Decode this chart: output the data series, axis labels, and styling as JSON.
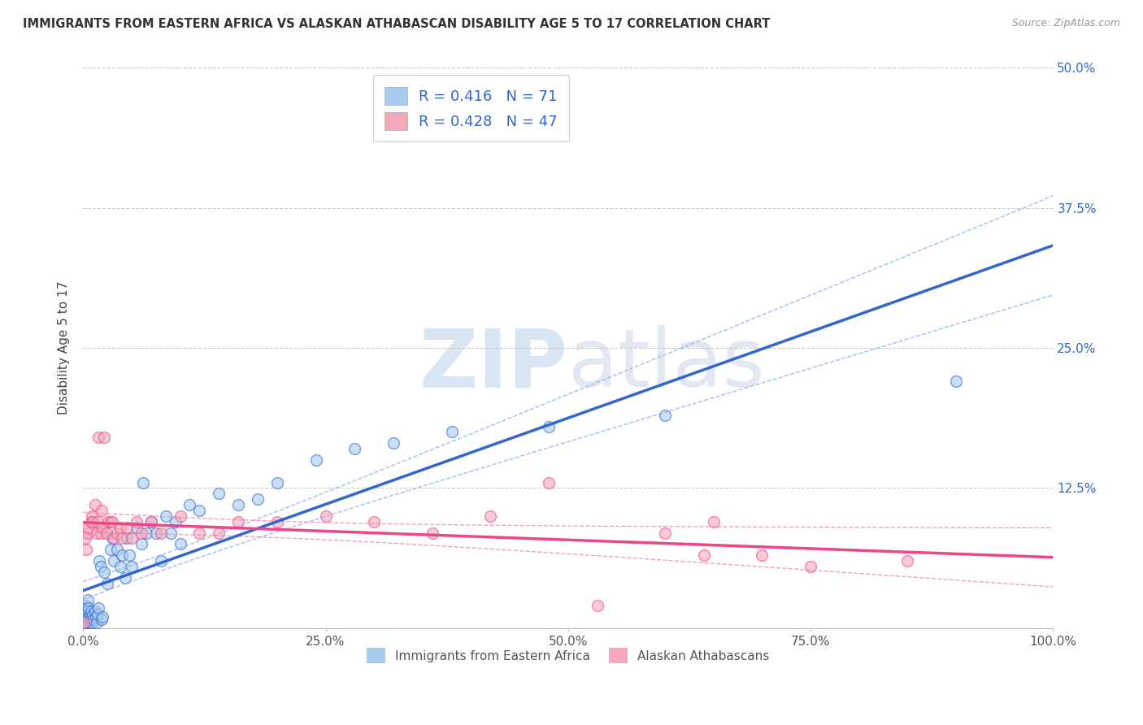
{
  "title": "IMMIGRANTS FROM EASTERN AFRICA VS ALASKAN ATHABASCAN DISABILITY AGE 5 TO 17 CORRELATION CHART",
  "source": "Source: ZipAtlas.com",
  "ylabel": "Disability Age 5 to 17",
  "legend_label1": "Immigrants from Eastern Africa",
  "legend_label2": "Alaskan Athabascans",
  "r1": 0.416,
  "n1": 71,
  "r2": 0.428,
  "n2": 47,
  "color1": "#A8CCF0",
  "color2": "#F4A8BC",
  "line_color1": "#3366CC",
  "line_color2": "#EE4488",
  "conf_color1": "#8AAEE8",
  "conf_color2": "#EE88AA",
  "xlim": [
    0,
    1.0
  ],
  "ylim": [
    0,
    0.5
  ],
  "xticks": [
    0.0,
    0.25,
    0.5,
    0.75,
    1.0
  ],
  "xticklabels": [
    "0.0%",
    "25.0%",
    "50.0%",
    "75.0%",
    "100.0%"
  ],
  "yticks": [
    0.0,
    0.125,
    0.25,
    0.375,
    0.5
  ],
  "yticklabels": [
    "",
    "12.5%",
    "25.0%",
    "37.5%",
    "50.0%"
  ],
  "blue_points": [
    [
      0.001,
      0.005
    ],
    [
      0.001,
      0.008
    ],
    [
      0.001,
      0.01
    ],
    [
      0.001,
      0.012
    ],
    [
      0.002,
      0.005
    ],
    [
      0.002,
      0.008
    ],
    [
      0.002,
      0.015
    ],
    [
      0.002,
      0.02
    ],
    [
      0.003,
      0.005
    ],
    [
      0.003,
      0.01
    ],
    [
      0.003,
      0.018
    ],
    [
      0.004,
      0.005
    ],
    [
      0.004,
      0.012
    ],
    [
      0.005,
      0.008
    ],
    [
      0.005,
      0.015
    ],
    [
      0.005,
      0.025
    ],
    [
      0.006,
      0.01
    ],
    [
      0.006,
      0.018
    ],
    [
      0.007,
      0.005
    ],
    [
      0.007,
      0.012
    ],
    [
      0.008,
      0.008
    ],
    [
      0.008,
      0.015
    ],
    [
      0.009,
      0.01
    ],
    [
      0.01,
      0.005
    ],
    [
      0.01,
      0.012
    ],
    [
      0.011,
      0.008
    ],
    [
      0.012,
      0.015
    ],
    [
      0.013,
      0.01
    ],
    [
      0.014,
      0.005
    ],
    [
      0.015,
      0.012
    ],
    [
      0.016,
      0.018
    ],
    [
      0.017,
      0.06
    ],
    [
      0.018,
      0.055
    ],
    [
      0.019,
      0.008
    ],
    [
      0.02,
      0.01
    ],
    [
      0.022,
      0.05
    ],
    [
      0.025,
      0.04
    ],
    [
      0.028,
      0.07
    ],
    [
      0.03,
      0.08
    ],
    [
      0.032,
      0.06
    ],
    [
      0.035,
      0.07
    ],
    [
      0.038,
      0.055
    ],
    [
      0.04,
      0.065
    ],
    [
      0.043,
      0.045
    ],
    [
      0.045,
      0.08
    ],
    [
      0.048,
      0.065
    ],
    [
      0.05,
      0.055
    ],
    [
      0.055,
      0.09
    ],
    [
      0.06,
      0.075
    ],
    [
      0.062,
      0.13
    ],
    [
      0.065,
      0.085
    ],
    [
      0.07,
      0.095
    ],
    [
      0.075,
      0.085
    ],
    [
      0.08,
      0.06
    ],
    [
      0.085,
      0.1
    ],
    [
      0.09,
      0.085
    ],
    [
      0.095,
      0.095
    ],
    [
      0.1,
      0.075
    ],
    [
      0.11,
      0.11
    ],
    [
      0.12,
      0.105
    ],
    [
      0.14,
      0.12
    ],
    [
      0.16,
      0.11
    ],
    [
      0.18,
      0.115
    ],
    [
      0.2,
      0.13
    ],
    [
      0.24,
      0.15
    ],
    [
      0.28,
      0.16
    ],
    [
      0.32,
      0.165
    ],
    [
      0.38,
      0.175
    ],
    [
      0.48,
      0.18
    ],
    [
      0.6,
      0.19
    ],
    [
      0.9,
      0.22
    ]
  ],
  "pink_points": [
    [
      0.001,
      0.005
    ],
    [
      0.002,
      0.08
    ],
    [
      0.003,
      0.07
    ],
    [
      0.005,
      0.085
    ],
    [
      0.006,
      0.09
    ],
    [
      0.008,
      0.095
    ],
    [
      0.009,
      0.1
    ],
    [
      0.01,
      0.095
    ],
    [
      0.012,
      0.11
    ],
    [
      0.014,
      0.085
    ],
    [
      0.015,
      0.095
    ],
    [
      0.016,
      0.17
    ],
    [
      0.018,
      0.085
    ],
    [
      0.019,
      0.105
    ],
    [
      0.02,
      0.09
    ],
    [
      0.022,
      0.17
    ],
    [
      0.024,
      0.085
    ],
    [
      0.026,
      0.095
    ],
    [
      0.028,
      0.095
    ],
    [
      0.03,
      0.095
    ],
    [
      0.032,
      0.08
    ],
    [
      0.035,
      0.085
    ],
    [
      0.038,
      0.09
    ],
    [
      0.04,
      0.08
    ],
    [
      0.045,
      0.09
    ],
    [
      0.05,
      0.08
    ],
    [
      0.055,
      0.095
    ],
    [
      0.06,
      0.085
    ],
    [
      0.07,
      0.095
    ],
    [
      0.08,
      0.085
    ],
    [
      0.1,
      0.1
    ],
    [
      0.12,
      0.085
    ],
    [
      0.14,
      0.085
    ],
    [
      0.16,
      0.095
    ],
    [
      0.2,
      0.095
    ],
    [
      0.25,
      0.1
    ],
    [
      0.3,
      0.095
    ],
    [
      0.36,
      0.085
    ],
    [
      0.42,
      0.1
    ],
    [
      0.48,
      0.13
    ],
    [
      0.53,
      0.02
    ],
    [
      0.6,
      0.085
    ],
    [
      0.64,
      0.065
    ],
    [
      0.65,
      0.095
    ],
    [
      0.7,
      0.065
    ],
    [
      0.75,
      0.055
    ],
    [
      0.85,
      0.06
    ]
  ],
  "title_fontsize": 10.5,
  "source_fontsize": 9,
  "tick_fontsize": 11,
  "ylabel_fontsize": 11
}
